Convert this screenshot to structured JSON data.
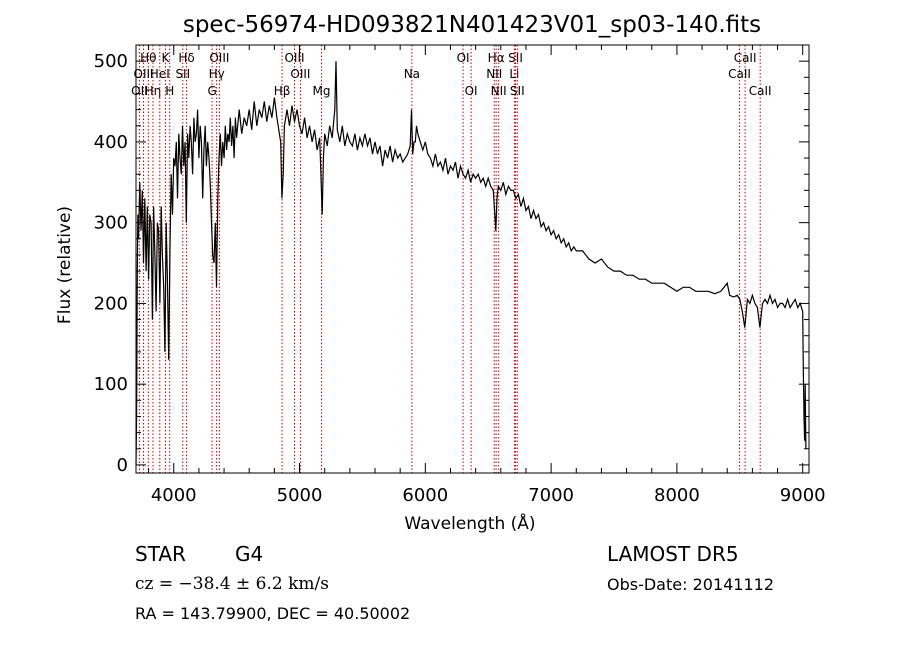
{
  "chart_data": {
    "type": "line",
    "title": "spec-56974-HD093821N401423V01_sp03-140.fits",
    "xlabel": "Wavelength (Å)",
    "ylabel": "Flux (relative)",
    "xlim": [
      3700,
      9050
    ],
    "ylim": [
      -10,
      520
    ],
    "xticks": [
      4000,
      5000,
      6000,
      7000,
      8000,
      9000
    ],
    "yticks": [
      0,
      100,
      200,
      300,
      400,
      500
    ],
    "series": [
      {
        "color": "#000000",
        "points": [
          [
            3700,
            0
          ],
          [
            3705,
            60
          ],
          [
            3710,
            240
          ],
          [
            3715,
            310
          ],
          [
            3720,
            280
          ],
          [
            3730,
            350
          ],
          [
            3740,
            290
          ],
          [
            3750,
            340
          ],
          [
            3760,
            250
          ],
          [
            3770,
            330
          ],
          [
            3780,
            240
          ],
          [
            3790,
            320
          ],
          [
            3800,
            230
          ],
          [
            3810,
            310
          ],
          [
            3820,
            300
          ],
          [
            3830,
            180
          ],
          [
            3840,
            320
          ],
          [
            3850,
            260
          ],
          [
            3860,
            190
          ],
          [
            3870,
            300
          ],
          [
            3880,
            290
          ],
          [
            3890,
            200
          ],
          [
            3900,
            320
          ],
          [
            3910,
            260
          ],
          [
            3920,
            220
          ],
          [
            3930,
            140
          ],
          [
            3940,
            300
          ],
          [
            3950,
            230
          ],
          [
            3960,
            130
          ],
          [
            3970,
            270
          ],
          [
            3980,
            360
          ],
          [
            3990,
            310
          ],
          [
            4000,
            380
          ],
          [
            4010,
            370
          ],
          [
            4020,
            400
          ],
          [
            4030,
            330
          ],
          [
            4040,
            410
          ],
          [
            4050,
            380
          ],
          [
            4060,
            360
          ],
          [
            4070,
            420
          ],
          [
            4080,
            370
          ],
          [
            4090,
            400
          ],
          [
            4100,
            300
          ],
          [
            4110,
            410
          ],
          [
            4120,
            380
          ],
          [
            4130,
            420
          ],
          [
            4140,
            400
          ],
          [
            4150,
            360
          ],
          [
            4160,
            430
          ],
          [
            4170,
            400
          ],
          [
            4180,
            410
          ],
          [
            4190,
            440
          ],
          [
            4200,
            380
          ],
          [
            4210,
            420
          ],
          [
            4220,
            400
          ],
          [
            4230,
            330
          ],
          [
            4240,
            390
          ],
          [
            4250,
            420
          ],
          [
            4260,
            370
          ],
          [
            4270,
            400
          ],
          [
            4280,
            380
          ],
          [
            4290,
            350
          ],
          [
            4300,
            300
          ],
          [
            4310,
            260
          ],
          [
            4320,
            250
          ],
          [
            4330,
            300
          ],
          [
            4340,
            220
          ],
          [
            4350,
            330
          ],
          [
            4360,
            380
          ],
          [
            4370,
            410
          ],
          [
            4380,
            370
          ],
          [
            4390,
            400
          ],
          [
            4400,
            380
          ],
          [
            4410,
            420
          ],
          [
            4420,
            390
          ],
          [
            4430,
            410
          ],
          [
            4440,
            400
          ],
          [
            4450,
            430
          ],
          [
            4460,
            395
          ],
          [
            4470,
            420
          ],
          [
            4480,
            380
          ],
          [
            4490,
            430
          ],
          [
            4500,
            405
          ],
          [
            4520,
            440
          ],
          [
            4540,
            410
          ],
          [
            4560,
            430
          ],
          [
            4580,
            420
          ],
          [
            4600,
            440
          ],
          [
            4620,
            415
          ],
          [
            4640,
            450
          ],
          [
            4660,
            420
          ],
          [
            4680,
            440
          ],
          [
            4700,
            430
          ],
          [
            4720,
            450
          ],
          [
            4740,
            425
          ],
          [
            4760,
            445
          ],
          [
            4780,
            430
          ],
          [
            4800,
            455
          ],
          [
            4820,
            430
          ],
          [
            4840,
            410
          ],
          [
            4850,
            400
          ],
          [
            4860,
            330
          ],
          [
            4870,
            360
          ],
          [
            4880,
            420
          ],
          [
            4890,
            430
          ],
          [
            4900,
            440
          ],
          [
            4920,
            420
          ],
          [
            4940,
            445
          ],
          [
            4960,
            425
          ],
          [
            4980,
            440
          ],
          [
            5000,
            420
          ],
          [
            5020,
            410
          ],
          [
            5040,
            430
          ],
          [
            5060,
            405
          ],
          [
            5080,
            420
          ],
          [
            5100,
            400
          ],
          [
            5120,
            415
          ],
          [
            5140,
            390
          ],
          [
            5160,
            405
          ],
          [
            5170,
            360
          ],
          [
            5180,
            310
          ],
          [
            5190,
            380
          ],
          [
            5200,
            410
          ],
          [
            5220,
            395
          ],
          [
            5240,
            420
          ],
          [
            5260,
            405
          ],
          [
            5280,
            440
          ],
          [
            5290,
            500
          ],
          [
            5300,
            415
          ],
          [
            5320,
            400
          ],
          [
            5340,
            420
          ],
          [
            5360,
            395
          ],
          [
            5380,
            410
          ],
          [
            5400,
            400
          ],
          [
            5420,
            395
          ],
          [
            5440,
            410
          ],
          [
            5460,
            390
          ],
          [
            5480,
            405
          ],
          [
            5500,
            395
          ],
          [
            5520,
            410
          ],
          [
            5540,
            395
          ],
          [
            5560,
            405
          ],
          [
            5580,
            385
          ],
          [
            5600,
            400
          ],
          [
            5620,
            385
          ],
          [
            5640,
            395
          ],
          [
            5660,
            370
          ],
          [
            5680,
            390
          ],
          [
            5700,
            380
          ],
          [
            5720,
            395
          ],
          [
            5740,
            375
          ],
          [
            5760,
            390
          ],
          [
            5780,
            380
          ],
          [
            5800,
            385
          ],
          [
            5820,
            375
          ],
          [
            5840,
            380
          ],
          [
            5860,
            385
          ],
          [
            5880,
            395
          ],
          [
            5890,
            440
          ],
          [
            5900,
            385
          ],
          [
            5910,
            400
          ],
          [
            5920,
            400
          ],
          [
            5930,
            420
          ],
          [
            5940,
            410
          ],
          [
            5960,
            400
          ],
          [
            5980,
            390
          ],
          [
            6000,
            400
          ],
          [
            6020,
            385
          ],
          [
            6040,
            380
          ],
          [
            6060,
            370
          ],
          [
            6080,
            385
          ],
          [
            6100,
            370
          ],
          [
            6120,
            375
          ],
          [
            6140,
            365
          ],
          [
            6160,
            380
          ],
          [
            6180,
            360
          ],
          [
            6200,
            370
          ],
          [
            6220,
            365
          ],
          [
            6240,
            375
          ],
          [
            6260,
            355
          ],
          [
            6280,
            370
          ],
          [
            6300,
            360
          ],
          [
            6320,
            355
          ],
          [
            6340,
            365
          ],
          [
            6360,
            350
          ],
          [
            6380,
            360
          ],
          [
            6400,
            355
          ],
          [
            6420,
            360
          ],
          [
            6440,
            350
          ],
          [
            6460,
            355
          ],
          [
            6480,
            345
          ],
          [
            6500,
            355
          ],
          [
            6520,
            345
          ],
          [
            6540,
            340
          ],
          [
            6560,
            290
          ],
          [
            6570,
            330
          ],
          [
            6580,
            345
          ],
          [
            6600,
            340
          ],
          [
            6620,
            350
          ],
          [
            6640,
            335
          ],
          [
            6660,
            345
          ],
          [
            6680,
            340
          ],
          [
            6700,
            340
          ],
          [
            6720,
            330
          ],
          [
            6740,
            335
          ],
          [
            6760,
            320
          ],
          [
            6780,
            330
          ],
          [
            6800,
            315
          ],
          [
            6820,
            320
          ],
          [
            6840,
            305
          ],
          [
            6860,
            315
          ],
          [
            6880,
            305
          ],
          [
            6900,
            310
          ],
          [
            6920,
            295
          ],
          [
            6940,
            300
          ],
          [
            6960,
            290
          ],
          [
            6980,
            295
          ],
          [
            7000,
            285
          ],
          [
            7020,
            290
          ],
          [
            7040,
            280
          ],
          [
            7060,
            285
          ],
          [
            7080,
            275
          ],
          [
            7100,
            280
          ],
          [
            7120,
            270
          ],
          [
            7140,
            275
          ],
          [
            7160,
            265
          ],
          [
            7180,
            270
          ],
          [
            7200,
            265
          ],
          [
            7250,
            265
          ],
          [
            7300,
            255
          ],
          [
            7350,
            250
          ],
          [
            7400,
            255
          ],
          [
            7450,
            245
          ],
          [
            7500,
            240
          ],
          [
            7550,
            240
          ],
          [
            7600,
            235
          ],
          [
            7650,
            235
          ],
          [
            7700,
            230
          ],
          [
            7750,
            230
          ],
          [
            7800,
            225
          ],
          [
            7850,
            225
          ],
          [
            7900,
            225
          ],
          [
            7950,
            220
          ],
          [
            8000,
            215
          ],
          [
            8050,
            220
          ],
          [
            8100,
            220
          ],
          [
            8150,
            215
          ],
          [
            8200,
            215
          ],
          [
            8250,
            215
          ],
          [
            8300,
            212
          ],
          [
            8350,
            215
          ],
          [
            8400,
            225
          ],
          [
            8420,
            210
          ],
          [
            8450,
            208
          ],
          [
            8480,
            210
          ],
          [
            8500,
            205
          ],
          [
            8520,
            190
          ],
          [
            8540,
            170
          ],
          [
            8560,
            205
          ],
          [
            8580,
            200
          ],
          [
            8600,
            210
          ],
          [
            8620,
            200
          ],
          [
            8640,
            195
          ],
          [
            8660,
            170
          ],
          [
            8680,
            200
          ],
          [
            8700,
            205
          ],
          [
            8720,
            200
          ],
          [
            8740,
            210
          ],
          [
            8760,
            200
          ],
          [
            8780,
            205
          ],
          [
            8800,
            195
          ],
          [
            8820,
            200
          ],
          [
            8840,
            200
          ],
          [
            8860,
            195
          ],
          [
            8880,
            205
          ],
          [
            8900,
            195
          ],
          [
            8920,
            200
          ],
          [
            8940,
            205
          ],
          [
            8960,
            195
          ],
          [
            8980,
            200
          ],
          [
            9000,
            190
          ],
          [
            9005,
            120
          ],
          [
            9010,
            60
          ],
          [
            9015,
            30
          ],
          [
            9020,
            100
          ],
          [
            9025,
            20
          ]
        ]
      }
    ],
    "line_marker_color": "#cc0000",
    "line_markers": [
      {
        "label": "OII",
        "x": 3727,
        "row": 3
      },
      {
        "label": "Hθ",
        "x": 3798,
        "row": 1
      },
      {
        "label": "OIII",
        "x": 3760,
        "row": 2
      },
      {
        "label": "Hη",
        "x": 3835,
        "row": 3
      },
      {
        "label": "HeI",
        "x": 3889,
        "row": 2
      },
      {
        "label": "K",
        "x": 3934,
        "row": 1
      },
      {
        "label": "H",
        "x": 3968,
        "row": 3
      },
      {
        "label": "Hδ",
        "x": 4102,
        "row": 1
      },
      {
        "label": "SII",
        "x": 4072,
        "row": 2
      },
      {
        "label": "OIII",
        "x": 4363,
        "row": 1
      },
      {
        "label": "Hγ",
        "x": 4341,
        "row": 2
      },
      {
        "label": "G",
        "x": 4305,
        "row": 3
      },
      {
        "label": "Hβ",
        "x": 4861,
        "row": 3
      },
      {
        "label": "OIII",
        "x": 4960,
        "row": 1
      },
      {
        "label": "OIII",
        "x": 5007,
        "row": 2
      },
      {
        "label": "Mg",
        "x": 5175,
        "row": 3
      },
      {
        "label": "Na",
        "x": 5893,
        "row": 2
      },
      {
        "label": "OI",
        "x": 6300,
        "row": 1
      },
      {
        "label": "OI",
        "x": 6364,
        "row": 3
      },
      {
        "label": "Hα",
        "x": 6563,
        "row": 1
      },
      {
        "label": "NII",
        "x": 6548,
        "row": 2
      },
      {
        "label": "NII",
        "x": 6583,
        "row": 3
      },
      {
        "label": "SII",
        "x": 6717,
        "row": 1
      },
      {
        "label": "Li",
        "x": 6708,
        "row": 2
      },
      {
        "label": "SII",
        "x": 6731,
        "row": 3
      },
      {
        "label": "CaII",
        "x": 8542,
        "row": 1
      },
      {
        "label": "CaII",
        "x": 8498,
        "row": 2
      },
      {
        "label": "CaII",
        "x": 8662,
        "row": 3
      }
    ],
    "grid": false
  },
  "info": {
    "object_class": "STAR",
    "subclass": "G4",
    "survey": "LAMOST DR5",
    "redshift_line": "cz = −38.4 ± 6.2 km/s",
    "obs_date": "Obs-Date: 20141112",
    "coords": "RA = 143.79900, DEC =  40.50002"
  }
}
